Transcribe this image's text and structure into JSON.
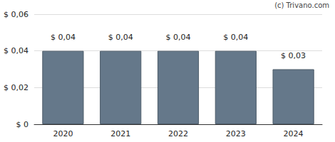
{
  "chart_data": {
    "type": "bar",
    "annotation": "(c) Trivano.com",
    "categories": [
      "2020",
      "2021",
      "2022",
      "2023",
      "2024"
    ],
    "values": [
      0.04,
      0.04,
      0.04,
      0.04,
      0.03
    ],
    "value_labels": [
      "$ 0,04",
      "$ 0,04",
      "$ 0,04",
      "$ 0,04",
      "$ 0,03"
    ],
    "data_labels": true,
    "color": "#65788a",
    "ylim": [
      0,
      0.06
    ],
    "yticks": [
      {
        "value": 0,
        "label": "$ 0"
      },
      {
        "value": 0.02,
        "label": "$ 0,02"
      },
      {
        "value": 0.04,
        "label": "$ 0,04"
      },
      {
        "value": 0.06,
        "label": "$ 0,06"
      }
    ],
    "grid": true
  }
}
